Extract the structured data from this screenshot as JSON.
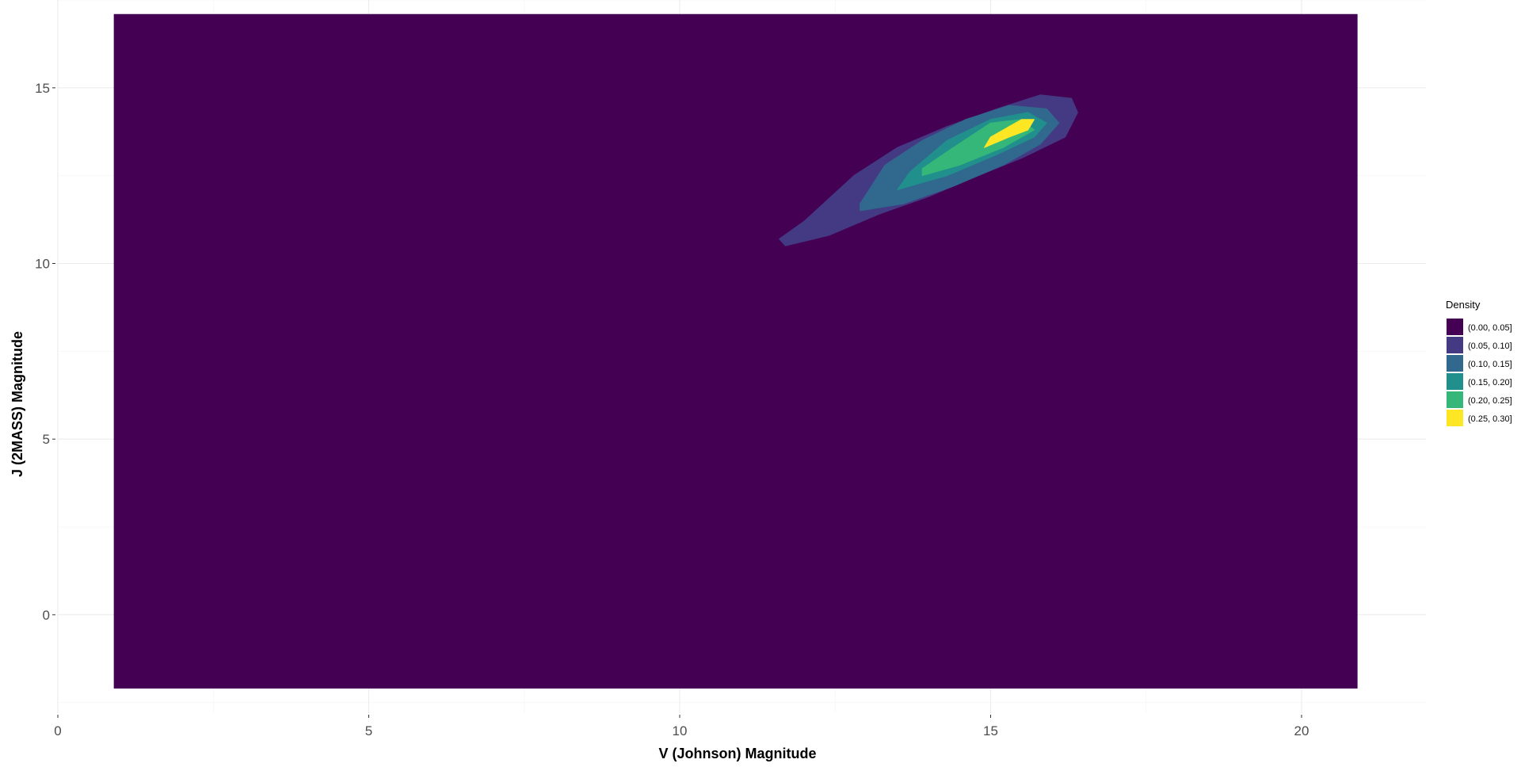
{
  "chart_data": {
    "type": "heatmap",
    "subtype": "filled-density-contour",
    "xlabel": "V (Johnson) Magnitude",
    "ylabel": "J (2MASS) Magnitude",
    "xlim": [
      0,
      22
    ],
    "ylim": [
      -2.8,
      17.5
    ],
    "x_ticks": [
      0,
      5,
      10,
      15,
      20
    ],
    "y_ticks": [
      0,
      5,
      10,
      15
    ],
    "grid": true,
    "data_extent": {
      "x": [
        0.9,
        20.9
      ],
      "y": [
        -2.1,
        17.1
      ]
    },
    "legend": {
      "title": "Density",
      "position": "right",
      "entries": [
        {
          "label": "(0.00, 0.05]",
          "color": "#440154"
        },
        {
          "label": "(0.05, 0.10]",
          "color": "#443A83"
        },
        {
          "label": "(0.10, 0.15]",
          "color": "#31688E"
        },
        {
          "label": "(0.15, 0.20]",
          "color": "#21908C"
        },
        {
          "label": "(0.20, 0.25]",
          "color": "#35B779"
        },
        {
          "label": "(0.25, 0.30]",
          "color": "#FDE725"
        }
      ]
    },
    "levels": [
      {
        "level": "(0.05, 0.10]",
        "color": "#443A83",
        "x": [
          11.7,
          12.4,
          13.2,
          14.0,
          14.8,
          15.5,
          16.2,
          16.4,
          16.3,
          15.8,
          15.1,
          14.3,
          13.5,
          12.8,
          12.0,
          11.6
        ],
        "y": [
          10.5,
          10.8,
          11.4,
          11.9,
          12.5,
          13.0,
          13.6,
          14.3,
          14.7,
          14.8,
          14.4,
          13.9,
          13.3,
          12.5,
          11.2,
          10.7
        ]
      },
      {
        "level": "(0.10, 0.15]",
        "color": "#31688E",
        "x": [
          12.9,
          13.6,
          14.4,
          15.2,
          15.8,
          16.1,
          15.9,
          15.3,
          14.6,
          13.9,
          13.3,
          12.9
        ],
        "y": [
          11.5,
          11.7,
          12.2,
          12.8,
          13.4,
          14.0,
          14.4,
          14.5,
          14.1,
          13.5,
          12.8,
          11.7
        ]
      },
      {
        "level": "(0.15, 0.20]",
        "color": "#21908C",
        "x": [
          13.5,
          14.3,
          15.1,
          15.7,
          15.9,
          15.6,
          15.0,
          14.3,
          13.7
        ],
        "y": [
          12.1,
          12.5,
          13.1,
          13.6,
          14.0,
          14.3,
          14.1,
          13.5,
          12.6
        ]
      },
      {
        "level": "(0.20, 0.25]",
        "color": "#35B779",
        "x": [
          13.9,
          14.5,
          15.2,
          15.7,
          15.5,
          15.0,
          14.4,
          13.9
        ],
        "y": [
          12.5,
          12.8,
          13.3,
          13.8,
          14.1,
          14.0,
          13.3,
          12.7
        ]
      },
      {
        "level": "(0.25, 0.30]",
        "color": "#FDE725",
        "x": [
          14.9,
          15.3,
          15.6,
          15.7,
          15.5,
          15.0
        ],
        "y": [
          13.3,
          13.6,
          13.8,
          14.1,
          14.1,
          13.6
        ]
      }
    ]
  }
}
